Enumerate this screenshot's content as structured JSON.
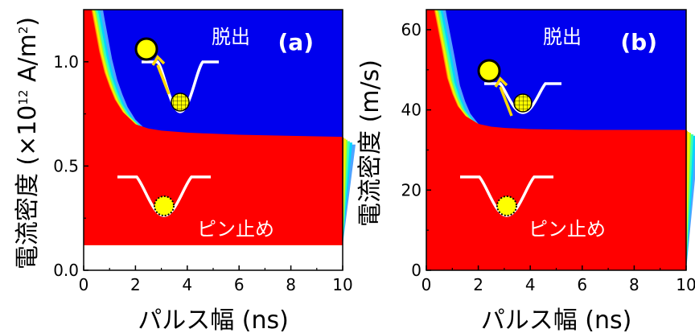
{
  "chart_data": [
    {
      "type": "heatmap",
      "panel_label": "(a)",
      "xlabel": "パルス幅 (ns)",
      "ylabel_prefix": "電流密度 (×10",
      "ylabel_exp": "12",
      "ylabel_unit": " A/m",
      "ylabel_sq": "2",
      "ylabel_close": ")",
      "xlim": [
        0,
        10
      ],
      "ylim": [
        0,
        1.25
      ],
      "xticks": [
        "0",
        "2",
        "4",
        "6",
        "8",
        "10"
      ],
      "yticks": [
        "0.0",
        "0.5",
        "1.0"
      ],
      "ytick_values": [
        0.0,
        0.5,
        1.0
      ],
      "data_ymin": 0.12,
      "threshold_x": [
        0.3,
        0.6,
        0.8,
        1.0,
        1.2,
        1.5,
        2.0,
        2.5,
        3.0,
        4.0,
        6.0,
        8.0,
        10.0
      ],
      "threshold_y": [
        1.25,
        1.05,
        0.95,
        0.88,
        0.82,
        0.76,
        0.7,
        0.68,
        0.67,
        0.66,
        0.65,
        0.645,
        0.64
      ],
      "region_labels": {
        "upper": "脱出",
        "lower": "ピン止め"
      },
      "colors": {
        "upper": "#0000ee",
        "lower": "#ff0000"
      }
    },
    {
      "type": "heatmap",
      "panel_label": "(b)",
      "xlabel": "パルス幅 (ns)",
      "ylabel": "電流密度 (m/s)",
      "xlim": [
        0,
        10
      ],
      "ylim": [
        0,
        65
      ],
      "xticks": [
        "0",
        "2",
        "4",
        "6",
        "8",
        "10"
      ],
      "yticks": [
        "0",
        "20",
        "40",
        "60"
      ],
      "ytick_values": [
        0,
        20,
        40,
        60
      ],
      "data_ymin": 0,
      "threshold_x": [
        0.3,
        0.6,
        0.8,
        1.0,
        1.2,
        1.5,
        2.0,
        2.5,
        3.0,
        4.0,
        6.0,
        8.0,
        10.0
      ],
      "threshold_y": [
        65,
        55,
        48,
        44,
        41,
        38.5,
        36.5,
        35.8,
        35.5,
        35.2,
        35.0,
        35.0,
        35.0
      ],
      "region_labels": {
        "upper": "脱出",
        "lower": "ピン止め"
      },
      "colors": {
        "upper": "#0000ee",
        "lower": "#ff0000"
      }
    }
  ]
}
